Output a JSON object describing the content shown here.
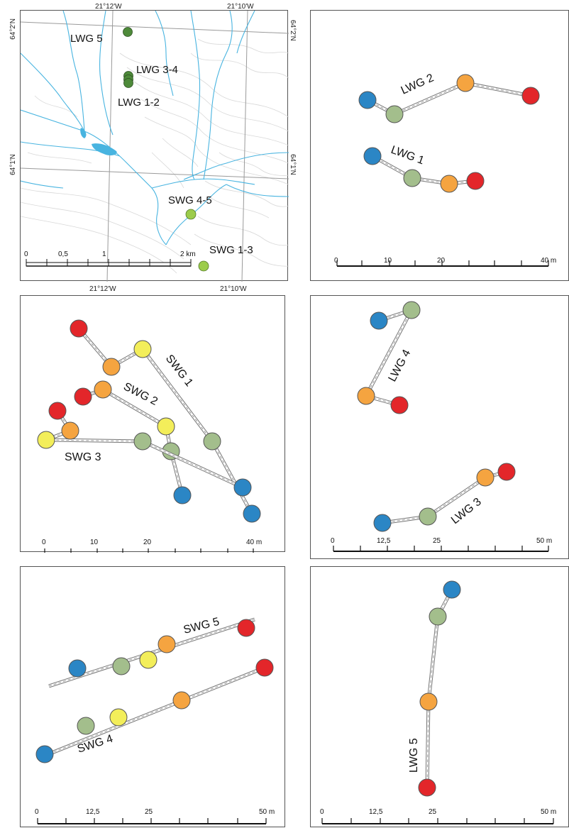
{
  "overview": {
    "coords_top": [
      "21°12'W",
      "21°10'W"
    ],
    "coords_bottom": [
      "21°12'W",
      "21°10'W"
    ],
    "coords_left": [
      "64°2'N",
      "64°1'N"
    ],
    "coords_right": [
      "64°2'N",
      "64°1'N"
    ],
    "scale_ticks": [
      "0",
      "0,5",
      "1",
      "2 km"
    ],
    "sites": [
      {
        "label": "LWG 5",
        "color": "#4e8a3a"
      },
      {
        "label": "LWG 3-4",
        "color": "#4e8a3a"
      },
      {
        "label": "LWG 1-2",
        "color": "#4e8a3a"
      },
      {
        "label": "SWG 4-5",
        "color": "#9ccc4c"
      },
      {
        "label": "SWG 1-3",
        "color": "#9ccc4c"
      }
    ]
  },
  "legend_colors": {
    "blue": "#2b86c5",
    "green": "#a3be8c",
    "yellow": "#f3ee5a",
    "orange": "#f5a440",
    "red": "#e3262a"
  },
  "panels": [
    {
      "id": "lwg-1-2",
      "scale_ticks": [
        "0",
        "10",
        "20",
        "40 m"
      ],
      "transects": [
        {
          "label": "LWG 2",
          "points": [
            "blue",
            "green",
            "orange",
            "red"
          ]
        },
        {
          "label": "LWG 1",
          "points": [
            "blue",
            "green",
            "orange",
            "red"
          ]
        }
      ]
    },
    {
      "id": "swg-1-3",
      "scale_ticks": [
        "0",
        "10",
        "20",
        "40 m"
      ],
      "transects": [
        {
          "label": "SWG 1",
          "points": [
            "red",
            "orange",
            "yellow",
            "green",
            "blue"
          ]
        },
        {
          "label": "SWG 2",
          "points": [
            "red",
            "orange",
            "yellow",
            "green",
            "blue"
          ]
        },
        {
          "label": "SWG 3",
          "points": [
            "red",
            "orange",
            "yellow",
            "green",
            "blue"
          ]
        }
      ]
    },
    {
      "id": "lwg-3-4",
      "scale_ticks": [
        "0",
        "12,5",
        "25",
        "50 m"
      ],
      "transects": [
        {
          "label": "LWG 4",
          "points": [
            "blue",
            "green",
            "orange",
            "red"
          ]
        },
        {
          "label": "LWG 3",
          "points": [
            "blue",
            "green",
            "orange",
            "red"
          ]
        }
      ]
    },
    {
      "id": "swg-4-5",
      "scale_ticks": [
        "0",
        "12,5",
        "25",
        "50 m"
      ],
      "transects": [
        {
          "label": "SWG 5",
          "points": [
            "blue",
            "green",
            "yellow",
            "orange",
            "red"
          ]
        },
        {
          "label": "SWG 4",
          "points": [
            "blue",
            "green",
            "yellow",
            "orange",
            "red"
          ]
        }
      ]
    },
    {
      "id": "lwg-5",
      "scale_ticks": [
        "0",
        "12,5",
        "25",
        "50 m"
      ],
      "transects": [
        {
          "label": "LWG 5",
          "points": [
            "blue",
            "green",
            "orange",
            "red"
          ]
        }
      ]
    }
  ]
}
